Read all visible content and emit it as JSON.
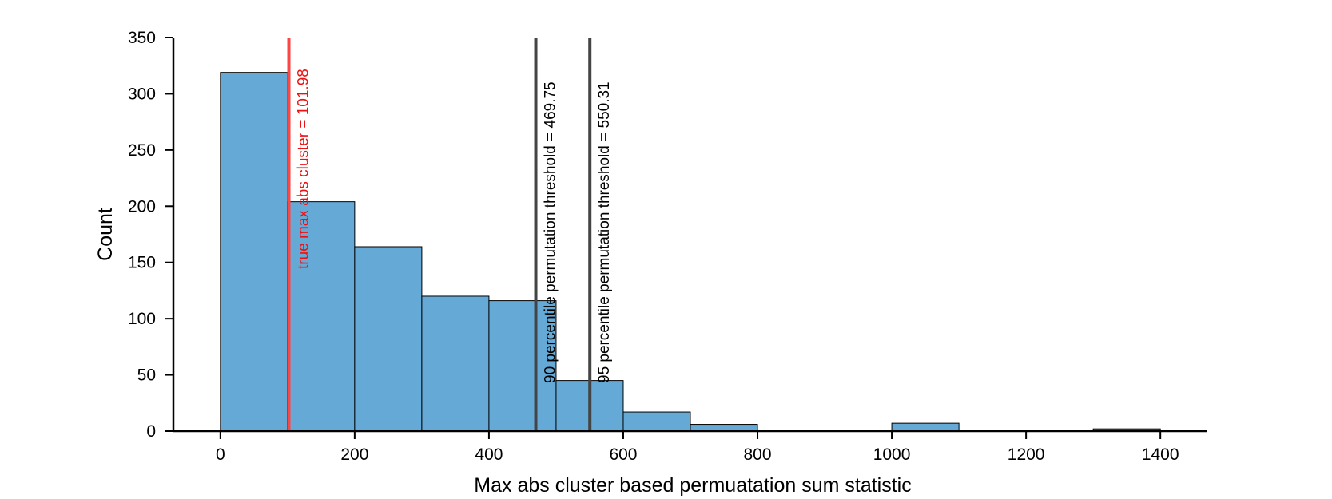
{
  "chart_data": {
    "type": "bar",
    "title": "",
    "xlabel": "Max abs cluster based permuatation sum statistic",
    "ylabel": "Count",
    "xlim": [
      -70,
      1470
    ],
    "ylim": [
      0,
      350
    ],
    "xticks": [
      0,
      200,
      400,
      600,
      800,
      1000,
      1200,
      1400
    ],
    "yticks": [
      0,
      50,
      100,
      150,
      200,
      250,
      300,
      350
    ],
    "grid": false,
    "bar_color": "#65a9d6",
    "bins": [
      {
        "x0": 0,
        "x1": 100,
        "count": 319
      },
      {
        "x0": 100,
        "x1": 200,
        "count": 204
      },
      {
        "x0": 200,
        "x1": 300,
        "count": 164
      },
      {
        "x0": 300,
        "x1": 400,
        "count": 120
      },
      {
        "x0": 400,
        "x1": 500,
        "count": 116
      },
      {
        "x0": 500,
        "x1": 600,
        "count": 45
      },
      {
        "x0": 600,
        "x1": 700,
        "count": 17
      },
      {
        "x0": 700,
        "x1": 800,
        "count": 6
      },
      {
        "x0": 800,
        "x1": 900,
        "count": 0
      },
      {
        "x0": 900,
        "x1": 1000,
        "count": 0
      },
      {
        "x0": 1000,
        "x1": 1100,
        "count": 7
      },
      {
        "x0": 1100,
        "x1": 1200,
        "count": 0
      },
      {
        "x0": 1200,
        "x1": 1300,
        "count": 0
      },
      {
        "x0": 1300,
        "x1": 1400,
        "count": 2
      }
    ],
    "vlines": [
      {
        "x": 101.98,
        "label": "true max abs cluster = 101.98",
        "color": "#ff4444",
        "text_color": "#ee1111"
      },
      {
        "x": 469.75,
        "label": "90 percentile permutation threshold = 469.75",
        "color": "#444444",
        "text_color": "#000000"
      },
      {
        "x": 550.31,
        "label": "95 percentile permutation threshold = 550.31",
        "color": "#444444",
        "text_color": "#000000"
      }
    ]
  }
}
